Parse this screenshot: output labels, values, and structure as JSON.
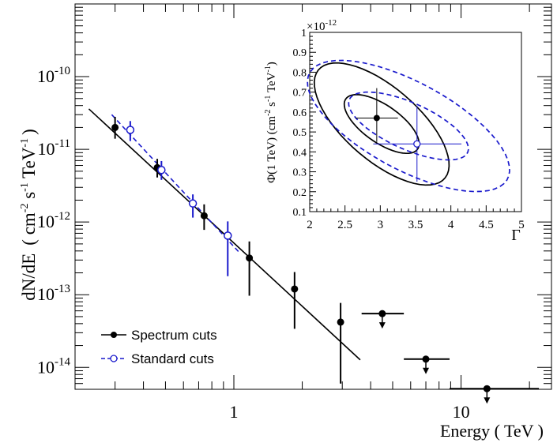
{
  "chart_data": [
    {
      "type": "scatter",
      "xlabel": "Energy ( TeV )",
      "ylabel": "dN/dE  ( cm^-2 s^-1 TeV^-1 )",
      "x_scale": "log",
      "y_scale": "log",
      "xlim": [
        0.2,
        25
      ],
      "ylim": [
        5e-15,
        1e-09
      ],
      "x_ticks": [
        {
          "value": 1,
          "label": "1"
        },
        {
          "value": 10,
          "label": "10"
        }
      ],
      "y_ticks": [
        {
          "value": 1e-14,
          "base": "10",
          "exp": "-14"
        },
        {
          "value": 1e-13,
          "base": "10",
          "exp": "-13"
        },
        {
          "value": 1e-12,
          "base": "10",
          "exp": "-12"
        },
        {
          "value": 1e-11,
          "base": "10",
          "exp": "-11"
        },
        {
          "value": 1e-10,
          "base": "10",
          "exp": "-10"
        }
      ],
      "legend_position": "bottom-left",
      "series": [
        {
          "name": "Spectrum cuts",
          "color": "#000000",
          "marker": "filled-circle",
          "points": [
            {
              "x": 0.3,
              "y": 2e-11,
              "ylo": 1.4e-11,
              "yhi": 2.8e-11
            },
            {
              "x": 0.46,
              "y": 5.6e-12,
              "ylo": 4.1e-12,
              "yhi": 7.4e-12
            },
            {
              "x": 0.74,
              "y": 1.22e-12,
              "ylo": 7.8e-13,
              "yhi": 1.75e-12
            },
            {
              "x": 1.17,
              "y": 3.2e-13,
              "ylo": 9.7e-14,
              "yhi": 5.4e-13
            },
            {
              "x": 1.85,
              "y": 1.2e-13,
              "ylo": 3.4e-14,
              "yhi": 2.05e-13
            },
            {
              "x": 2.95,
              "y": 4.2e-14,
              "ylo": 6e-15,
              "yhi": 7.7e-14
            }
          ],
          "upper_limits": [
            {
              "x": 4.5,
              "xlo": 3.65,
              "xhi": 5.6,
              "y": 5.5e-14
            },
            {
              "x": 7.0,
              "xlo": 5.6,
              "xhi": 8.9,
              "y": 1.3e-14
            },
            {
              "x": 13.0,
              "xlo": 8.9,
              "xhi": 22,
              "y": 5.1e-15
            }
          ],
          "fit_line": {
            "x": [
              0.23,
              3.6
            ],
            "y": [
              3.6e-11,
              1.27e-14
            ]
          }
        },
        {
          "name": "Standard cuts",
          "color": "#1a1acc",
          "marker": "open-circle",
          "points": [
            {
              "x": 0.35,
              "y": 1.85e-11,
              "ylo": 1.3e-11,
              "yhi": 2.45e-11
            },
            {
              "x": 0.48,
              "y": 5.2e-12,
              "ylo": 3.8e-12,
              "yhi": 6.9e-12
            },
            {
              "x": 0.66,
              "y": 1.8e-12,
              "ylo": 1.15e-12,
              "yhi": 2.4e-12
            },
            {
              "x": 0.94,
              "y": 6.5e-13,
              "ylo": 1.8e-13,
              "yhi": 1.02e-12
            }
          ],
          "fit_line": {
            "x": [
              0.29,
              1.05
            ],
            "y": [
              3e-11,
              3.9e-13
            ]
          }
        }
      ]
    },
    {
      "type": "contour",
      "xlabel": "Γ",
      "ylabel": "Φ(1 TeV) (cm^-2 s^-1 TeV^-1)",
      "y_multiplier": "×10^-12",
      "xlim": [
        2,
        5
      ],
      "ylim": [
        0.1,
        1.0
      ],
      "x_ticks": [
        "2",
        "2.5",
        "3",
        "3.5",
        "4",
        "4.5",
        "5"
      ],
      "y_ticks": [
        "0.1",
        "0.2",
        "0.3",
        "0.4",
        "0.5",
        "0.6",
        "0.7",
        "0.8",
        "0.9",
        "1"
      ],
      "best_fit": [
        {
          "series": "Spectrum cuts",
          "gamma": 2.95,
          "phi": 0.57,
          "gamma_err": [
            2.65,
            3.25
          ],
          "phi_err": [
            0.45,
            0.72
          ],
          "color": "#000000",
          "marker": "filled-circle"
        },
        {
          "series": "Standard cuts",
          "gamma": 3.52,
          "phi": 0.44,
          "gamma_err": [
            2.9,
            4.15
          ],
          "phi_err": [
            0.25,
            0.63
          ],
          "color": "#1a1acc",
          "marker": "open-circle"
        }
      ],
      "contours": [
        {
          "series": "Spectrum cuts",
          "color": "#000000",
          "style": "solid",
          "center": [
            3.02,
            0.54
          ],
          "semi_gamma": [
            0.5,
            0.9
          ],
          "semi_phi": [
            0.13,
            0.27
          ]
        },
        {
          "series": "Standard cuts",
          "color": "#1a1acc",
          "style": "dashed",
          "center": [
            3.4,
            0.53
          ],
          "semi_gamma": [
            0.8,
            1.35
          ],
          "semi_phi": [
            0.15,
            0.29
          ]
        }
      ]
    }
  ],
  "labels": {
    "ylabel_main": "dN/dE",
    "ylabel_unit_open": "( cm",
    "ylabel_exp1": "-2",
    "ylabel_s": " s",
    "ylabel_exp2": "-1",
    "ylabel_tev": " TeV",
    "ylabel_exp3": "-1",
    "ylabel_close": ")",
    "xlabel": "Energy ( TeV )",
    "legend_spectrum": "Spectrum cuts",
    "legend_standard": "Standard cuts",
    "inset_xlabel": "Γ",
    "inset_ylabel_main": "Φ(1 TeV) (cm",
    "inset_ylabel_exp1": "-2",
    "inset_ylabel_s": " s",
    "inset_ylabel_exp2": "-1",
    "inset_ylabel_tev": " TeV",
    "inset_ylabel_exp3": "-1",
    "inset_ylabel_close": ")",
    "inset_mult_base": "×10",
    "inset_mult_exp": "-12"
  }
}
